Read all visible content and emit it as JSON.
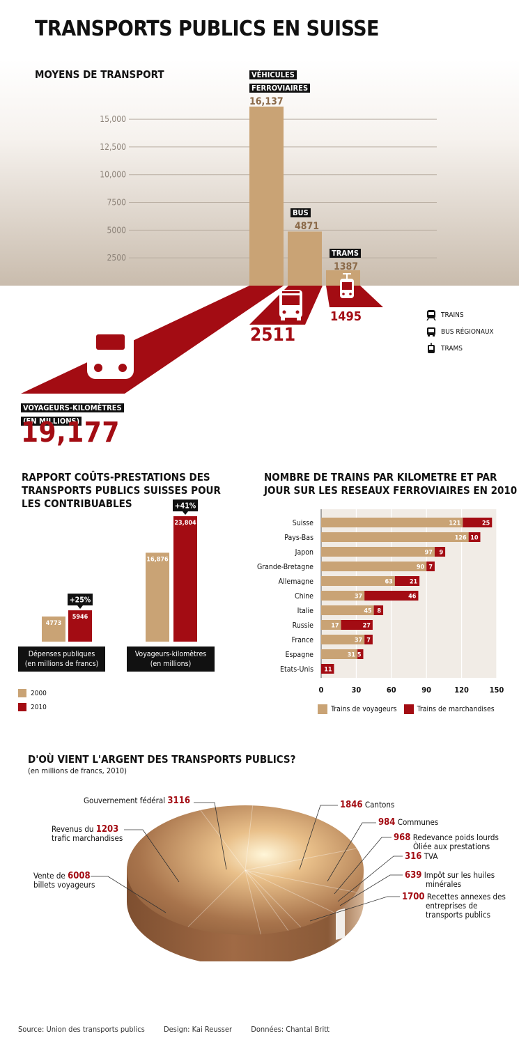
{
  "title": "TRANSPORTS PUBLICS EN SUISSE",
  "moyens": {
    "heading": "MOYENS DE TRANSPORT",
    "yticks": [
      "2500",
      "5000",
      "7500",
      "10,000",
      "12,500",
      "15,000"
    ],
    "ytick_values": [
      2500,
      5000,
      7500,
      10000,
      12500,
      15000
    ],
    "bars": [
      {
        "label_lines": [
          "VÉHICULES",
          "FERROVIAIRES"
        ],
        "value": 16137,
        "value_label": "16,137"
      },
      {
        "label_lines": [
          "BUS"
        ],
        "value": 4871,
        "value_label": "4871"
      },
      {
        "label_lines": [
          "TRAMS"
        ],
        "value": 1387,
        "value_label": "1387"
      }
    ],
    "vk_label_lines": [
      "VOYAGEURS-KILOMÈTRES",
      "(EN MILLIONS)"
    ],
    "vk_trains": "19,177",
    "vk_bus": "2511",
    "vk_trams": "1495",
    "legend": [
      "TRAINS",
      "BUS RÉGIONAUX",
      "TRAMS"
    ],
    "colors": {
      "tan": "#c9a375",
      "red": "#a30c13"
    }
  },
  "rapport": {
    "heading_lines": [
      "RAPPORT COÛTS-PRESTATIONS DES",
      "TRANSPORTS PUBLICS SUISSES POUR",
      "LES CONTRIBUABLES"
    ],
    "groups": [
      {
        "label_lines": [
          "Dépenses publiques",
          "(en millions de francs)"
        ],
        "v2000": 4773,
        "v2010": 5946,
        "l2000": "4773",
        "l2010": "5946",
        "change": "+25%"
      },
      {
        "label_lines": [
          "Voyageurs-kilomètres",
          "(en millions)"
        ],
        "v2000": 16876,
        "v2010": 23804,
        "l2000": "16,876",
        "l2010": "23,804",
        "change": "+41%"
      }
    ],
    "legend": [
      "2000",
      "2010"
    ]
  },
  "trains": {
    "heading_lines": [
      "NOMBRE DE TRAINS PAR KILOMETRE ET PAR",
      "JOUR SUR LES RESEAUX FERROVIAIRES EN 2010"
    ],
    "xticks": [
      "0",
      "30",
      "60",
      "90",
      "120",
      "150"
    ],
    "xtick_values": [
      0,
      30,
      60,
      90,
      120,
      150
    ],
    "legend": [
      "Trains de voyageurs",
      "Trains de marchandises"
    ]
  },
  "argent": {
    "heading": "D'OÙ VIENT L'ARGENT DES TRANSPORTS PUBLICS?",
    "subheading": "(en millions de francs, 2010)"
  },
  "chart_data": [
    {
      "type": "bar",
      "title": "MOYENS DE TRANSPORT",
      "categories": [
        "VÉHICULES FERROVIAIRES",
        "BUS",
        "TRAMS"
      ],
      "values": [
        16137,
        4871,
        1387
      ],
      "ylim": [
        0,
        16137
      ],
      "grid": true,
      "annotations": {
        "VOYAGEURS-KILOMÈTRES (EN MILLIONS)": {
          "TRAINS": 19177,
          "BUS RÉGIONAUX": 2511,
          "TRAMS": 1495
        }
      }
    },
    {
      "type": "bar",
      "title": "RAPPORT COÛTS-PRESTATIONS DES TRANSPORTS PUBLICS SUISSES POUR LES CONTRIBUABLES",
      "categories": [
        "Dépenses publiques (en millions de francs)",
        "Voyageurs-kilomètres (en millions)"
      ],
      "series": [
        {
          "name": "2000",
          "values": [
            4773,
            16876
          ]
        },
        {
          "name": "2010",
          "values": [
            5946,
            23804
          ]
        }
      ],
      "legend": "bottom-left"
    },
    {
      "type": "bar",
      "orientation": "horizontal",
      "stacked": true,
      "title": "NOMBRE DE TRAINS PAR KILOMETRE ET PAR JOUR SUR LES RESEAUX FERROVIAIRES EN 2010",
      "categories": [
        "Suisse",
        "Pays-Bas",
        "Japon",
        "Grande-Bretagne",
        "Allemagne",
        "Chine",
        "Italie",
        "Russie",
        "France",
        "Espagne",
        "Etats-Unis"
      ],
      "series": [
        {
          "name": "Trains de voyageurs",
          "values": [
            121,
            126,
            97,
            90,
            63,
            37,
            45,
            17,
            37,
            31,
            0
          ]
        },
        {
          "name": "Trains de marchandises",
          "values": [
            25,
            10,
            9,
            7,
            21,
            46,
            8,
            27,
            7,
            5,
            11
          ]
        }
      ],
      "xlim": [
        0,
        150
      ],
      "legend": "bottom"
    },
    {
      "type": "pie",
      "title": "D'OÙ VIENT L'ARGENT DES TRANSPORTS PUBLICS?",
      "subtitle": "(en millions de francs, 2010)",
      "slices": [
        {
          "value": 3116,
          "label_before": "Gouvernement fédéral",
          "label_after": "",
          "value_label": "3116"
        },
        {
          "value": 1846,
          "label_before": "",
          "label_after": "Cantons",
          "value_label": "1846"
        },
        {
          "value": 984,
          "label_before": "",
          "label_after": "Communes",
          "value_label": "984"
        },
        {
          "value": 968,
          "label_before": "",
          "label_after": "Redevance poids lourds|Òliée aux prestations",
          "value_label": "968"
        },
        {
          "value": 316,
          "label_before": "",
          "label_after": "TVA",
          "value_label": "316"
        },
        {
          "value": 639,
          "label_before": "",
          "label_after": "Impôt sur les huiles|minérales",
          "value_label": "639"
        },
        {
          "value": 1700,
          "label_before": "",
          "label_after": "Recettes annexes des|entreprises de|transports publics",
          "value_label": "1700"
        },
        {
          "value": 6008,
          "label_before": "Vente de",
          "label_after": "billets voyageurs",
          "value_label": "6008"
        },
        {
          "value": 1203,
          "label_before": "Revenus du",
          "label_after": "trafic marchandises",
          "value_label": "1203"
        }
      ]
    }
  ],
  "footer": {
    "source": "Source: Union des transports publics",
    "design": "Design: Kai Reusser",
    "donnees": "Données: Chantal Britt"
  }
}
